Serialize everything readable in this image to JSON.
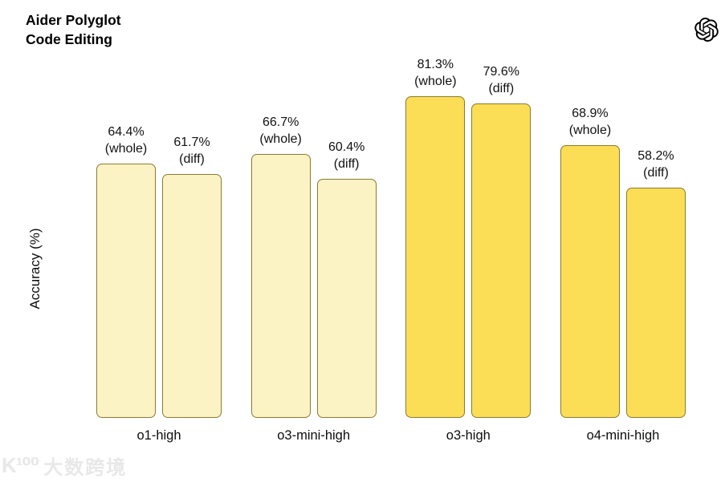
{
  "header": {
    "title_line1": "Aider Polyglot",
    "title_line2": "Code Editing",
    "logo_icon": "openai-logo"
  },
  "chart_data": {
    "type": "bar",
    "title": "Aider Polyglot Code Editing",
    "ylabel": "Accuracy (%)",
    "ylim": [
      0,
      100
    ],
    "grid": false,
    "legend_position": "none",
    "categories": [
      "o1-high",
      "o3-mini-high",
      "o3-high",
      "o4-mini-high"
    ],
    "series": [
      {
        "name": "whole",
        "values": [
          64.4,
          66.7,
          81.3,
          68.9
        ]
      },
      {
        "name": "diff",
        "values": [
          61.7,
          60.4,
          79.6,
          58.2
        ]
      }
    ],
    "bar_labels": [
      [
        "64.4% (whole)",
        "61.7% (diff)"
      ],
      [
        "66.7% (whole)",
        "60.4% (diff)"
      ],
      [
        "81.3% (whole)",
        "79.6% (diff)"
      ],
      [
        "68.9% (whole)",
        "58.2% (diff)"
      ]
    ],
    "category_styles": [
      "pale",
      "pale",
      "bright",
      "bright"
    ],
    "colors": {
      "pale_fill": "#FCF3C5",
      "bright_fill": "#FBDE55",
      "bar_border": "#8A7A33",
      "text": "#111111"
    }
  },
  "watermark": {
    "logo_text": "K¹⁰⁰",
    "text": "大数跨境",
    "color": "#E6E6E6"
  }
}
